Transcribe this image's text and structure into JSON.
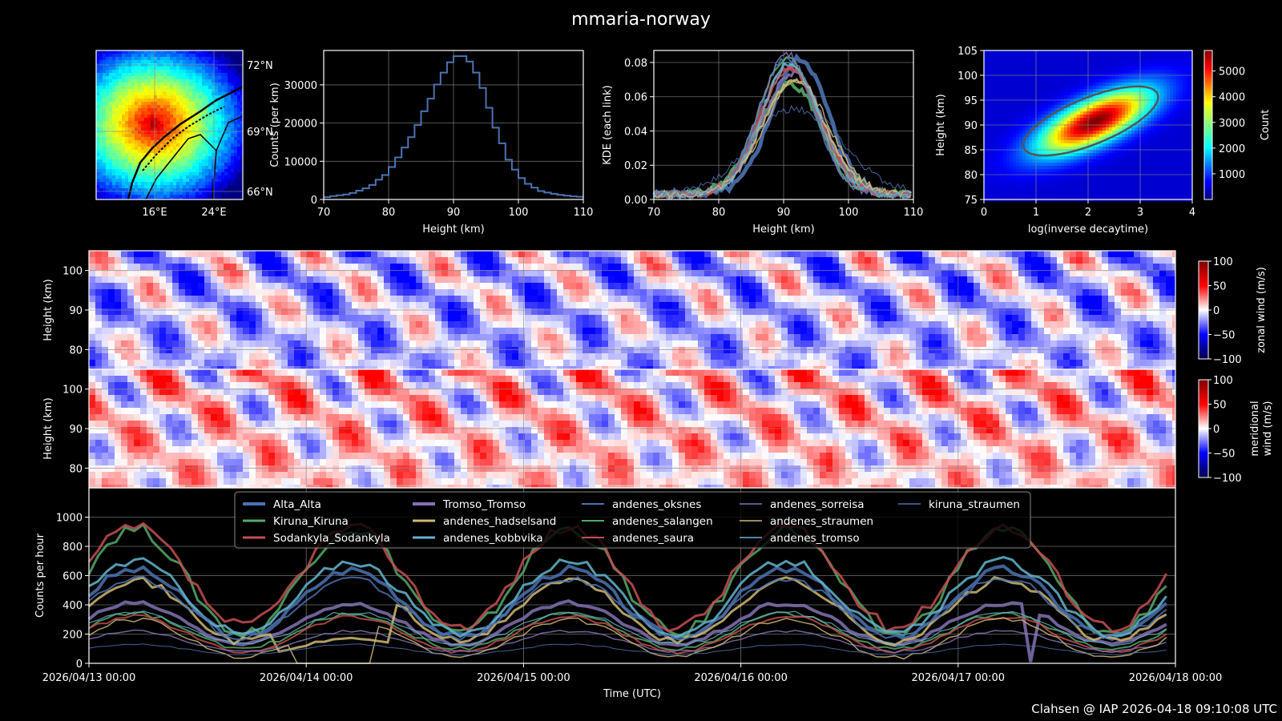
{
  "title": "mmaria-norway",
  "footer": "Clahsen @ IAP 2026-04-18 09:10:08 UTC",
  "chart_data": [
    {
      "id": "map",
      "type": "heatmap",
      "title": "",
      "colormap": "jet",
      "xticks": [
        "16°E",
        "24°E"
      ],
      "yticks": [
        "72°N",
        "69°N",
        "66°N"
      ],
      "description": "Meteor detection density map over northern Norway with coastline and borders"
    },
    {
      "id": "height-hist",
      "type": "line",
      "xlabel": "Height (km)",
      "ylabel": "Counts (per km)",
      "xlim": [
        70,
        110
      ],
      "ylim": [
        0,
        39000
      ],
      "xticks": [
        "70",
        "80",
        "90",
        "100",
        "110"
      ],
      "yticks": [
        "0",
        "10000",
        "20000",
        "30000"
      ],
      "color": "#4c72b0",
      "x": [
        70,
        71,
        72,
        73,
        74,
        75,
        76,
        77,
        78,
        79,
        80,
        81,
        82,
        83,
        84,
        85,
        86,
        87,
        88,
        89,
        90,
        91,
        92,
        93,
        94,
        95,
        96,
        97,
        98,
        99,
        100,
        101,
        102,
        103,
        104,
        105,
        106,
        107,
        108,
        109
      ],
      "values": [
        600,
        900,
        1100,
        1300,
        1700,
        2300,
        2900,
        3800,
        5200,
        6400,
        8500,
        11000,
        13600,
        16300,
        19500,
        23100,
        26400,
        30100,
        33200,
        35900,
        37500,
        37500,
        36100,
        33200,
        29200,
        24000,
        18800,
        14700,
        10400,
        7800,
        5600,
        4100,
        3100,
        2200,
        1800,
        1500,
        1200,
        1000,
        800,
        700
      ]
    },
    {
      "id": "kde",
      "type": "line",
      "xlabel": "Height (km)",
      "ylabel": "KDE (each link)",
      "xlim": [
        70,
        110
      ],
      "ylim": [
        0,
        0.087
      ],
      "xticks": [
        "70",
        "80",
        "90",
        "100",
        "110"
      ],
      "yticks": [
        "0.00",
        "0.02",
        "0.04",
        "0.06",
        "0.08"
      ],
      "series": [
        {
          "name": "Alta_Alta",
          "peak": 0.079,
          "center": 92.5,
          "width": 4.4,
          "color": "#4c72b0"
        },
        {
          "name": "Kiruna_Kiruna",
          "peak": 0.064,
          "center": 91,
          "width": 5.0,
          "color": "#55a868"
        },
        {
          "name": "Sodankyla_Sodankyla",
          "peak": 0.075,
          "center": 91,
          "width": 4.6,
          "color": "#c44e52"
        },
        {
          "name": "Tromso_Tromso",
          "peak": 0.071,
          "center": 91.5,
          "width": 4.7,
          "color": "#8172b2"
        },
        {
          "name": "andenes_hadselsand",
          "peak": 0.066,
          "center": 91.5,
          "width": 4.9,
          "color": "#ccb974"
        },
        {
          "name": "andenes_kobbvika",
          "peak": 0.077,
          "center": 91,
          "width": 4.4,
          "color": "#64b5cd"
        },
        {
          "name": "andenes_oksnes",
          "peak": 0.08,
          "center": 90.5,
          "width": 4.3,
          "color": "#4c72b0"
        },
        {
          "name": "andenes_salangen",
          "peak": 0.08,
          "center": 90.5,
          "width": 4.4,
          "color": "#55a868"
        },
        {
          "name": "andenes_saura",
          "peak": 0.073,
          "center": 91,
          "width": 4.6,
          "color": "#c44e52"
        },
        {
          "name": "andenes_sorreisa",
          "peak": 0.082,
          "center": 90.5,
          "width": 4.3,
          "color": "#8172b2"
        },
        {
          "name": "andenes_straumen",
          "peak": 0.066,
          "center": 92,
          "width": 5.0,
          "color": "#ccb974"
        },
        {
          "name": "andenes_tromso",
          "peak": 0.076,
          "center": 91,
          "width": 4.4,
          "color": "#64b5cd"
        },
        {
          "name": "kiruna_straumen",
          "peak": 0.05,
          "center": 91.5,
          "width": 6.5,
          "color": "#4c72b0"
        }
      ]
    },
    {
      "id": "decay-density",
      "type": "heatmap",
      "xlabel": "log(inverse decaytime)",
      "ylabel": "Height (km)",
      "xlim": [
        0,
        4
      ],
      "ylim": [
        75,
        105
      ],
      "xticks": [
        "0",
        "1",
        "2",
        "3",
        "4"
      ],
      "yticks": [
        "75",
        "80",
        "85",
        "90",
        "95",
        "100",
        "105"
      ],
      "colorbar_label": "Count",
      "colorbar_ticks": [
        "1000",
        "2000",
        "3000",
        "4000",
        "5000"
      ],
      "colorbar_range": [
        0,
        5800
      ],
      "peak": {
        "x": 2.1,
        "y": 91,
        "count": 5800
      }
    },
    {
      "id": "zonal-wind",
      "type": "heatmap",
      "ylabel": "Height (km)",
      "yticks": [
        "80",
        "90",
        "100"
      ],
      "ylim": [
        75,
        105
      ],
      "colorbar_label": "zonal wind (m/s)",
      "colorbar_ticks": [
        "100",
        "50",
        "0",
        "−50",
        "−100"
      ],
      "colorbar_range": [
        -100,
        100
      ],
      "colormap": "seismic"
    },
    {
      "id": "meridional-wind",
      "type": "heatmap",
      "ylabel": "Height (km)",
      "yticks": [
        "80",
        "90",
        "100"
      ],
      "ylim": [
        75,
        105
      ],
      "colorbar_label": "meridional wind (m/s)",
      "colorbar_ticks": [
        "100",
        "50",
        "0",
        "−50",
        "−100"
      ],
      "colorbar_range": [
        -100,
        100
      ],
      "colormap": "seismic"
    },
    {
      "id": "counts-per-hour",
      "type": "line",
      "xlabel": "Time (UTC)",
      "ylabel": "Counts per hour",
      "ylim": [
        0,
        1200
      ],
      "yticks": [
        "0",
        "200",
        "400",
        "600",
        "800",
        "1000"
      ],
      "xticks": [
        "2026/04/13 00:00",
        "2026/04/14 00:00",
        "2026/04/15 00:00",
        "2026/04/16 00:00",
        "2026/04/17 00:00",
        "2026/04/18 00:00"
      ],
      "legend_position": "top-center",
      "series": [
        {
          "name": "Alta_Alta",
          "color": "#4c72b0",
          "lw": 4,
          "base": 410,
          "amp": 230
        },
        {
          "name": "Kiruna_Kiruna",
          "color": "#55a868",
          "lw": 3,
          "base": 560,
          "amp": 360
        },
        {
          "name": "Sodankyla_Sodankyla",
          "color": "#c44e52",
          "lw": 3,
          "base": 590,
          "amp": 340
        },
        {
          "name": "Tromso_Tromso",
          "color": "#8172b2",
          "lw": 4,
          "base": 270,
          "amp": 140
        },
        {
          "name": "andenes_hadselsand",
          "color": "#ccb974",
          "lw": 3,
          "base": 360,
          "amp": 210
        },
        {
          "name": "andenes_kobbvika",
          "color": "#64b5cd",
          "lw": 3,
          "base": 450,
          "amp": 250
        },
        {
          "name": "andenes_oksnes",
          "color": "#4c72b0",
          "lw": 2,
          "base": 380,
          "amp": 200
        },
        {
          "name": "andenes_salangen",
          "color": "#55a868",
          "lw": 2,
          "base": 220,
          "amp": 120
        },
        {
          "name": "andenes_saura",
          "color": "#c44e52",
          "lw": 2,
          "base": 200,
          "amp": 120
        },
        {
          "name": "andenes_sorreisa",
          "color": "#8172b2",
          "lw": 1.5,
          "base": 150,
          "amp": 70
        },
        {
          "name": "andenes_straumen",
          "color": "#ccb974",
          "lw": 1.5,
          "base": 170,
          "amp": 130
        },
        {
          "name": "andenes_tromso",
          "color": "#64b5cd",
          "lw": 1.2,
          "base": 240,
          "amp": 110
        },
        {
          "name": "kiruna_straumen",
          "color": "#4c72b0",
          "lw": 1,
          "base": 95,
          "amp": 35
        }
      ]
    }
  ]
}
